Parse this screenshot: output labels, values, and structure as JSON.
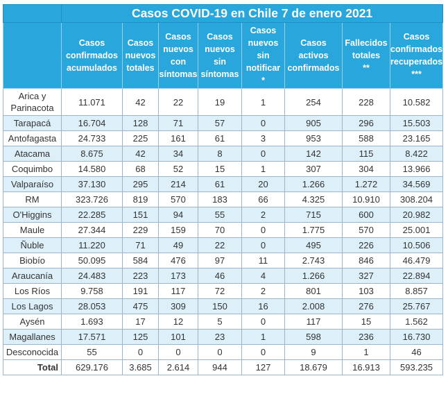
{
  "title": "Casos COVID-19 en Chile 7 de enero 2021",
  "headers": [
    "Casos\nconfirmados\nacumulados",
    "Casos\nnuevos\ntotales",
    "Casos\nnuevos\ncon\nsíntomas",
    "Casos\nnuevos\nsin\nsíntomas",
    "Casos\nnuevos\nsin\nnotificar\n*",
    "Casos\nactivos\nconfirmados",
    "Fallecidos\ntotales\n**",
    "Casos\nconfirmados\nrecuperados\n***"
  ],
  "rows": [
    {
      "region": "Arica y\nParinacota",
      "values": [
        "11.071",
        "42",
        "22",
        "19",
        "1",
        "254",
        "228",
        "10.582"
      ]
    },
    {
      "region": "Tarapacá",
      "values": [
        "16.704",
        "128",
        "71",
        "57",
        "0",
        "905",
        "296",
        "15.503"
      ]
    },
    {
      "region": "Antofagasta",
      "values": [
        "24.733",
        "225",
        "161",
        "61",
        "3",
        "953",
        "588",
        "23.165"
      ]
    },
    {
      "region": "Atacama",
      "values": [
        "8.675",
        "42",
        "34",
        "8",
        "0",
        "142",
        "115",
        "8.422"
      ]
    },
    {
      "region": "Coquimbo",
      "values": [
        "14.580",
        "68",
        "52",
        "15",
        "1",
        "307",
        "304",
        "13.966"
      ]
    },
    {
      "region": "Valparaíso",
      "values": [
        "37.130",
        "295",
        "214",
        "61",
        "20",
        "1.266",
        "1.272",
        "34.569"
      ]
    },
    {
      "region": "RM",
      "values": [
        "323.726",
        "819",
        "570",
        "183",
        "66",
        "4.325",
        "10.910",
        "308.204"
      ]
    },
    {
      "region": "O'Higgins",
      "values": [
        "22.285",
        "151",
        "94",
        "55",
        "2",
        "715",
        "600",
        "20.982"
      ]
    },
    {
      "region": "Maule",
      "values": [
        "27.344",
        "229",
        "159",
        "70",
        "0",
        "1.775",
        "570",
        "25.001"
      ]
    },
    {
      "region": "Ñuble",
      "values": [
        "11.220",
        "71",
        "49",
        "22",
        "0",
        "495",
        "226",
        "10.506"
      ]
    },
    {
      "region": "Biobío",
      "values": [
        "50.095",
        "584",
        "476",
        "97",
        "11",
        "2.743",
        "846",
        "46.479"
      ]
    },
    {
      "region": "Araucanía",
      "values": [
        "24.483",
        "223",
        "173",
        "46",
        "4",
        "1.266",
        "327",
        "22.894"
      ]
    },
    {
      "region": "Los Ríos",
      "values": [
        "9.758",
        "191",
        "117",
        "72",
        "2",
        "801",
        "103",
        "8.857"
      ]
    },
    {
      "region": "Los Lagos",
      "values": [
        "28.053",
        "475",
        "309",
        "150",
        "16",
        "2.008",
        "276",
        "25.767"
      ]
    },
    {
      "region": "Aysén",
      "values": [
        "1.693",
        "17",
        "12",
        "5",
        "0",
        "117",
        "15",
        "1.562"
      ]
    },
    {
      "region": "Magallanes",
      "values": [
        "17.571",
        "125",
        "101",
        "23",
        "1",
        "598",
        "236",
        "16.730"
      ]
    },
    {
      "region": "Desconocida",
      "values": [
        "55",
        "0",
        "0",
        "0",
        "0",
        "9",
        "1",
        "46"
      ]
    }
  ],
  "total": {
    "label": "Total",
    "values": [
      "629.176",
      "3.685",
      "2.614",
      "944",
      "127",
      "18.679",
      "16.913",
      "593.235"
    ]
  },
  "colors": {
    "header_bg": "#29a6db",
    "header_text": "#ffffff",
    "row_alt": "#ddeff9",
    "border": "#9bb3c8"
  }
}
